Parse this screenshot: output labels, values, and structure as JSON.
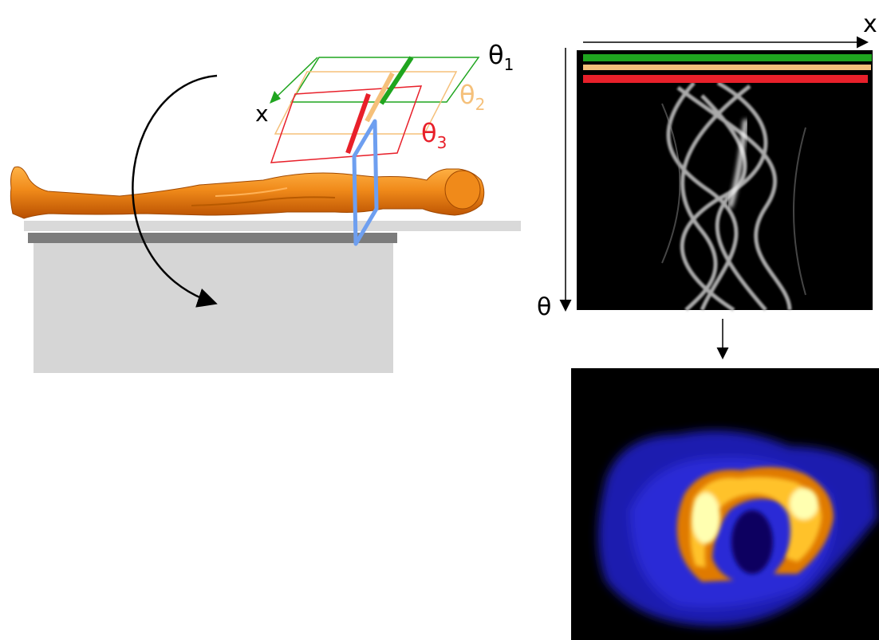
{
  "labels": {
    "left_axis_x": "x",
    "theta1_base": "θ",
    "theta1_sub": "1",
    "theta2_base": "θ",
    "theta2_sub": "2",
    "theta3_base": "θ",
    "theta3_sub": "3",
    "sinogram_x": "x",
    "sinogram_theta": "θ"
  },
  "colors": {
    "theta1": "#1fa51f",
    "theta2": "#f5c07a",
    "theta3": "#e8202a",
    "slice_plane": "#6e9ff0",
    "body": "#ef7a12",
    "table_top": "#d9d9d9",
    "table_rail": "#7c7c7c",
    "table_base": "#d6d6d6",
    "arrow": "#000000"
  },
  "icons": {
    "rotation": "curved-arrow-icon",
    "down": "down-arrow-icon"
  }
}
